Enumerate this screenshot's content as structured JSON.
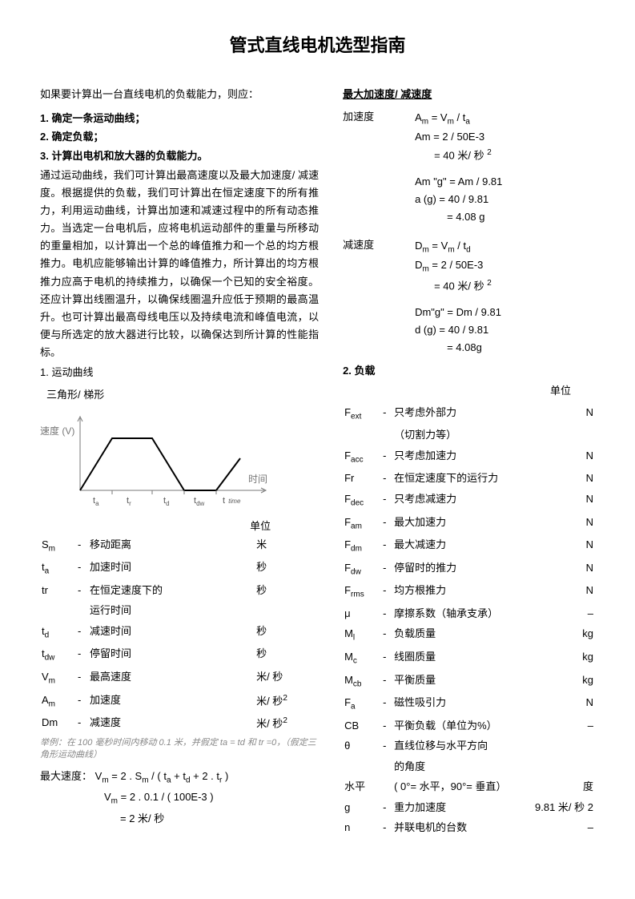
{
  "title": "管式直线电机选型指南",
  "intro": "如果要计算出一台直线电机的负载能力，则应：",
  "steps": {
    "s1": "1. 确定一条运动曲线；",
    "s2": "2. 确定负载；",
    "s3": "3. 计算出电机和放大器的负载能力。"
  },
  "para": "通过运动曲线，我们可计算出最高速度以及最大加速度/ 减速度。根据提供的负载，我们可计算出在恒定速度下的所有推力，利用运动曲线，计算出加速和减速过程中的所有动态推力。当选定一台电机后，应将电机运动部件的重量与所移动的重量相加，以计算出一个总的峰值推力和一个总的均方根推力。电机应能够输出计算的峰值推力，所计算出的均方根推力应高于电机的持续推力，以确保一个已知的安全裕度。还应计算出线圈温升，以确保线圈温升应低于预期的最高温升。也可计算出最高母线电压以及持续电流和峰值电流，以便与所选定的放大器进行比较，以确保达到所计算的性能指标。",
  "section1": "1. 运动曲线",
  "shape": "三角形/ 梯形",
  "chart": {
    "ylabel": "速度 (V)",
    "xlabel": "时间",
    "ticks": [
      "t",
      "a",
      "t",
      "r",
      "t",
      "d",
      "t",
      "dw",
      "t",
      "time"
    ],
    "line_color": "#000000",
    "bg": "#ffffff",
    "axis_color": "#888888"
  },
  "unit_label": "单位",
  "defs": [
    {
      "sym": "S",
      "sub": "m",
      "desc": "移动距离",
      "unit": "米"
    },
    {
      "sym": "t",
      "sub": "a",
      "desc": "加速时间",
      "unit": "秒"
    },
    {
      "sym": "tr",
      "sub": "",
      "desc": "在恒定速度下的",
      "desc2": "运行时间",
      "unit": "秒"
    },
    {
      "sym": "t",
      "sub": "d",
      "desc": "减速时间",
      "unit": "秒"
    },
    {
      "sym": "t",
      "sub": "dw",
      "desc": "停留时间",
      "unit": "秒"
    },
    {
      "sym": "V",
      "sub": "m",
      "desc": "最高速度",
      "unit": "米/ 秒"
    },
    {
      "sym": "A",
      "sub": "m",
      "desc": "加速度",
      "unit": "米/ 秒",
      "sup": "2"
    },
    {
      "sym": "Dm",
      "sub": "",
      "desc": "减速度",
      "unit": "米/ 秒",
      "sup": "2"
    }
  ],
  "note": "举例：在 100 毫秒时间内移动 0.1 米，并假定 ta = td 和 tr =0，（假定三角形运动曲线）",
  "vmax": {
    "l1a": "最大速度：",
    "l1b": "V",
    "l1c": "m",
    "l1d": " = 2 . S",
    "l1e": "m",
    "l1f": " / (  t",
    "l1g": "a",
    "l1h": " + t",
    "l1i": "d",
    "l1j": " + 2 . t",
    "l1k": "r",
    "l1l": " )",
    "l2a": "V",
    "l2b": "m",
    "l2c": " = 2 . 0.1 / (  100E-3 )",
    "l3": "= 2 米/ 秒"
  },
  "accel_title": "最大加速度/ 减速度",
  "accel": {
    "label": "加速度",
    "l1": "Am = Vm / ta",
    "l2": "Am = 2 / 50E-3",
    "l3": "= 40 米/ 秒 ",
    "l3sup": "2",
    "l4": "Am \"g\" = Am / 9.81",
    "l5": "a (g)   = 40 / 9.81",
    "l6": "= 4.08 g"
  },
  "decel": {
    "label": "减速度",
    "l1": "Dm = Vm / td",
    "l2": "Dm = 2 / 50E-3",
    "l3": "= 40 米/ 秒 ",
    "l3sup": "2",
    "l4": "Dm\"g\" = Dm / 9.81",
    "l5": "d (g)  = 40 / 9.81",
    "l6": "= 4.08g"
  },
  "section2": "2. 负载",
  "load": [
    {
      "sym": "F",
      "sub": "ext",
      "desc": "只考虑外部力",
      "desc2": "（切割力等）",
      "unit": "N"
    },
    {
      "sym": "F",
      "sub": "acc",
      "desc": "只考虑加速力",
      "unit": "N"
    },
    {
      "sym": "Fr",
      "sub": "",
      "desc": "在恒定速度下的运行力",
      "unit": "N"
    },
    {
      "sym": "F",
      "sub": "dec",
      "desc": "只考虑减速力",
      "unit": "N"
    },
    {
      "sym": "F",
      "sub": "am",
      "desc": "最大加速力",
      "unit": "N"
    },
    {
      "sym": "F",
      "sub": "dm",
      "desc": "最大减速力",
      "unit": "N"
    },
    {
      "sym": "F",
      "sub": "dw",
      "desc": "停留时的推力",
      "unit": "N"
    },
    {
      "sym": "F",
      "sub": "rms",
      "desc": "均方根推力",
      "unit": "N"
    },
    {
      "sym": "μ",
      "sub": "",
      "desc": "摩擦系数（轴承支承）",
      "unit": "–"
    },
    {
      "sym": "M",
      "sub": "l",
      "desc": "负载质量",
      "unit": "kg"
    },
    {
      "sym": "M",
      "sub": "c",
      "desc": "线圈质量",
      "unit": "kg"
    },
    {
      "sym": "M",
      "sub": "cb",
      "desc": "平衡质量",
      "unit": "kg"
    },
    {
      "sym": "F",
      "sub": "a",
      "desc": "磁性吸引力",
      "unit": "N"
    },
    {
      "sym": "CB",
      "sub": "",
      "desc": "平衡负载（单位为%）",
      "unit": "–"
    },
    {
      "sym": "θ",
      "sub": "",
      "desc": "直线位移与水平方向",
      "desc2": "的角度",
      "unit": ""
    },
    {
      "sym": "水平",
      "sub": "",
      "desc": "( 0°= 水平，90°= 垂直）",
      "unit": "度",
      "nodash": true
    },
    {
      "sym": "g",
      "sub": "",
      "desc": "重力加速度",
      "unit": "9.81 米/ 秒 2"
    },
    {
      "sym": "n",
      "sub": "",
      "desc": "并联电机的台数",
      "unit": "–"
    }
  ]
}
